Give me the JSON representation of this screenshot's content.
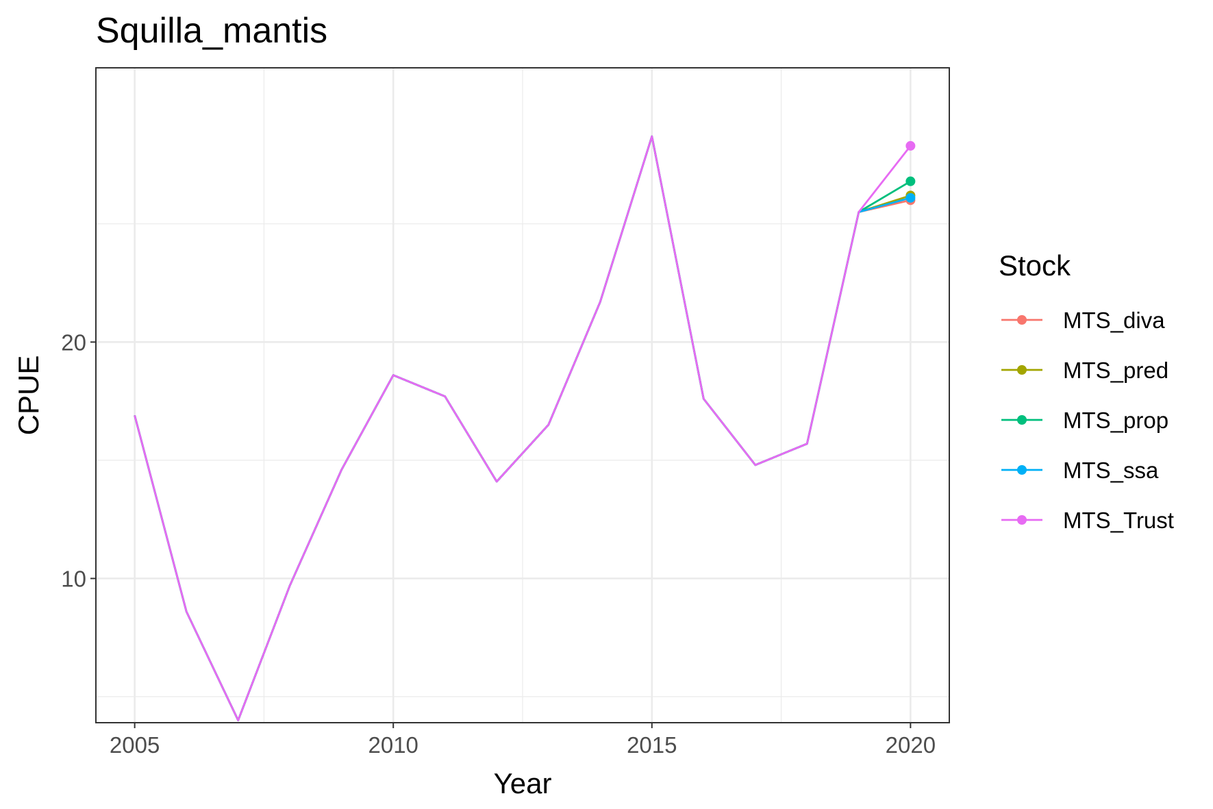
{
  "chart_data": {
    "type": "line",
    "title": "Squilla_mantis",
    "xlabel": "Year",
    "ylabel": "CPUE",
    "xlim": [
      2004.25,
      2020.75
    ],
    "ylim": [
      3.9,
      31.6
    ],
    "x_ticks": [
      2005,
      2010,
      2015,
      2020
    ],
    "y_ticks": [
      10,
      20
    ],
    "x_minor": [
      2007.5,
      2012.5,
      2017.5
    ],
    "y_minor": [
      5,
      15,
      25
    ],
    "grid": true,
    "legend": {
      "title": "Stock",
      "position": "right",
      "entries": [
        "MTS_diva",
        "MTS_pred",
        "MTS_prop",
        "MTS_ssa",
        "MTS_Trust"
      ]
    },
    "base_years": [
      2005,
      2006,
      2007,
      2008,
      2009,
      2010,
      2011,
      2012,
      2013,
      2014,
      2015,
      2016,
      2017,
      2018,
      2019
    ],
    "base_values": [
      16.9,
      8.6,
      4.0,
      9.7,
      14.6,
      18.6,
      17.7,
      14.1,
      16.5,
      21.7,
      28.7,
      17.6,
      14.8,
      15.7,
      25.5
    ],
    "series": [
      {
        "name": "MTS_diva",
        "color": "#F8766D",
        "x": [
          2019,
          2020
        ],
        "values": [
          25.5,
          26.0
        ]
      },
      {
        "name": "MTS_pred",
        "color": "#A3A500",
        "x": [
          2019,
          2020
        ],
        "values": [
          25.5,
          26.2
        ]
      },
      {
        "name": "MTS_prop",
        "color": "#00BF7D",
        "x": [
          2019,
          2020
        ],
        "values": [
          25.5,
          26.8
        ]
      },
      {
        "name": "MTS_ssa",
        "color": "#00B0F6",
        "x": [
          2019,
          2020
        ],
        "values": [
          25.5,
          26.1
        ]
      },
      {
        "name": "MTS_Trust",
        "color": "#E76BF3",
        "x": [
          2019,
          2020
        ],
        "values": [
          25.5,
          28.3
        ]
      }
    ]
  }
}
